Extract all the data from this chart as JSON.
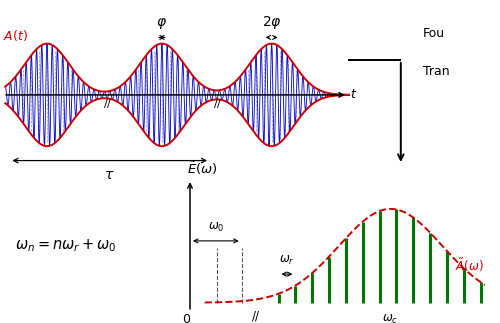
{
  "bg_color": "#ffffff",
  "top_panel": {
    "envelope_color": "#cc0000",
    "wave_color": "#1111cc",
    "dashed_color": "#8888aa",
    "centers": [
      0.4,
      1.5,
      2.55
    ],
    "sigma": 0.21,
    "carrier_freq": 20.0,
    "carrier_freq2": 22.0,
    "xlim": [
      -0.05,
      3.3
    ],
    "ylim": [
      -1.55,
      1.85
    ],
    "tau_y": -1.28,
    "tau_x1": 0.04,
    "tau_x2": 1.96
  },
  "bottom_panel": {
    "bar_color": "#007700",
    "envelope_color": "#cc0000",
    "n_bars": 13,
    "bar_x_start": 0.3,
    "bar_x_end": 0.985,
    "envelope_peak": 0.68,
    "envelope_sigma": 0.175,
    "max_height": 0.82,
    "omega0_x1": 0.09,
    "omega0_x2": 0.175,
    "slash_x": 0.225
  },
  "arrow_color": "#000000"
}
